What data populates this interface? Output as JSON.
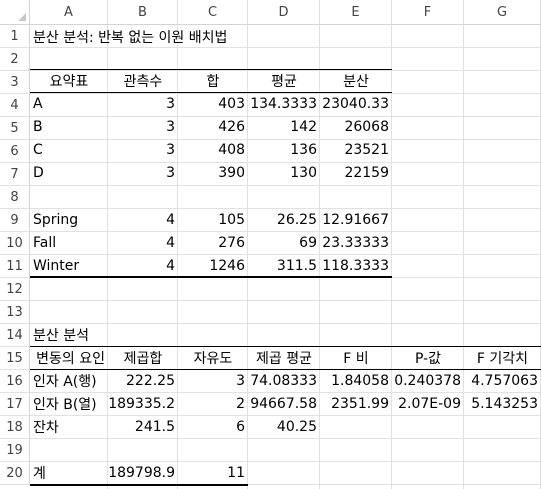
{
  "columns": [
    "A",
    "B",
    "C",
    "D",
    "E",
    "F",
    "G"
  ],
  "rows": [
    "1",
    "2",
    "3",
    "4",
    "5",
    "6",
    "7",
    "8",
    "9",
    "10",
    "11",
    "12",
    "13",
    "14",
    "15",
    "16",
    "17",
    "18",
    "19",
    "20"
  ],
  "title": "분산 분석: 반복 없는 이원 배치법",
  "summary": {
    "headers": [
      "요약표",
      "관측수",
      "합",
      "평균",
      "분산"
    ],
    "rows": [
      [
        "A",
        "3",
        "403",
        "134.3333",
        "23040.33"
      ],
      [
        "B",
        "3",
        "426",
        "142",
        "26068"
      ],
      [
        "C",
        "3",
        "408",
        "136",
        "23521"
      ],
      [
        "D",
        "3",
        "390",
        "130",
        "22159"
      ],
      [
        "Spring",
        "4",
        "105",
        "26.25",
        "12.91667"
      ],
      [
        "Fall",
        "4",
        "276",
        "69",
        "23.33333"
      ],
      [
        "Winter",
        "4",
        "1246",
        "311.5",
        "118.3333"
      ]
    ]
  },
  "anova": {
    "label": "분산 분석",
    "headers": [
      "변동의 요인",
      "제곱합",
      "자유도",
      "제곱 평균",
      "F 비",
      "P-값",
      "F 기각치"
    ],
    "rows": [
      [
        "인자 A(행)",
        "222.25",
        "3",
        "74.08333",
        "1.84058",
        "0.240378",
        "4.757063"
      ],
      [
        "인자 B(열)",
        "189335.2",
        "2",
        "94667.58",
        "2351.99",
        "2.07E-09",
        "5.143253"
      ],
      [
        "잔차",
        "241.5",
        "6",
        "40.25",
        "",
        "",
        ""
      ]
    ],
    "total": [
      "계",
      "189798.9",
      "11"
    ]
  }
}
